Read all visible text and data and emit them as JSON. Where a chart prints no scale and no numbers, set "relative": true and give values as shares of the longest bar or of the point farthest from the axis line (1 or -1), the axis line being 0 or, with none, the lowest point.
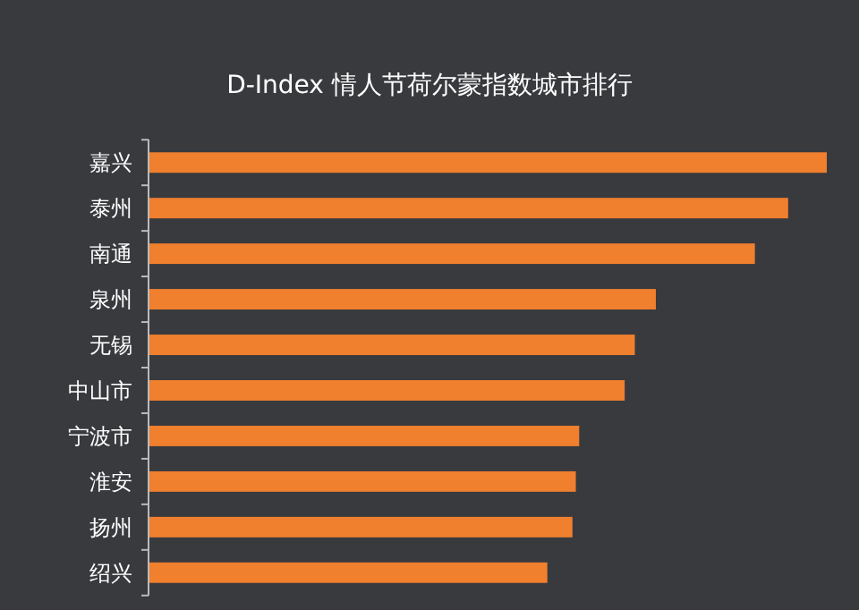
{
  "chart_data": {
    "type": "bar",
    "orientation": "horizontal",
    "relative": true,
    "title": "D-Index 情人节荷尔蒙指数城市排行",
    "categories": [
      "嘉兴",
      "泰州",
      "南通",
      "泉州",
      "无锡",
      "中山市",
      "宁波市",
      "淮安",
      "扬州",
      "绍兴"
    ],
    "values": [
      1,
      0.943,
      0.894,
      0.748,
      0.717,
      0.702,
      0.635,
      0.63,
      0.625,
      0.588
    ],
    "color": "#f07f2e"
  }
}
